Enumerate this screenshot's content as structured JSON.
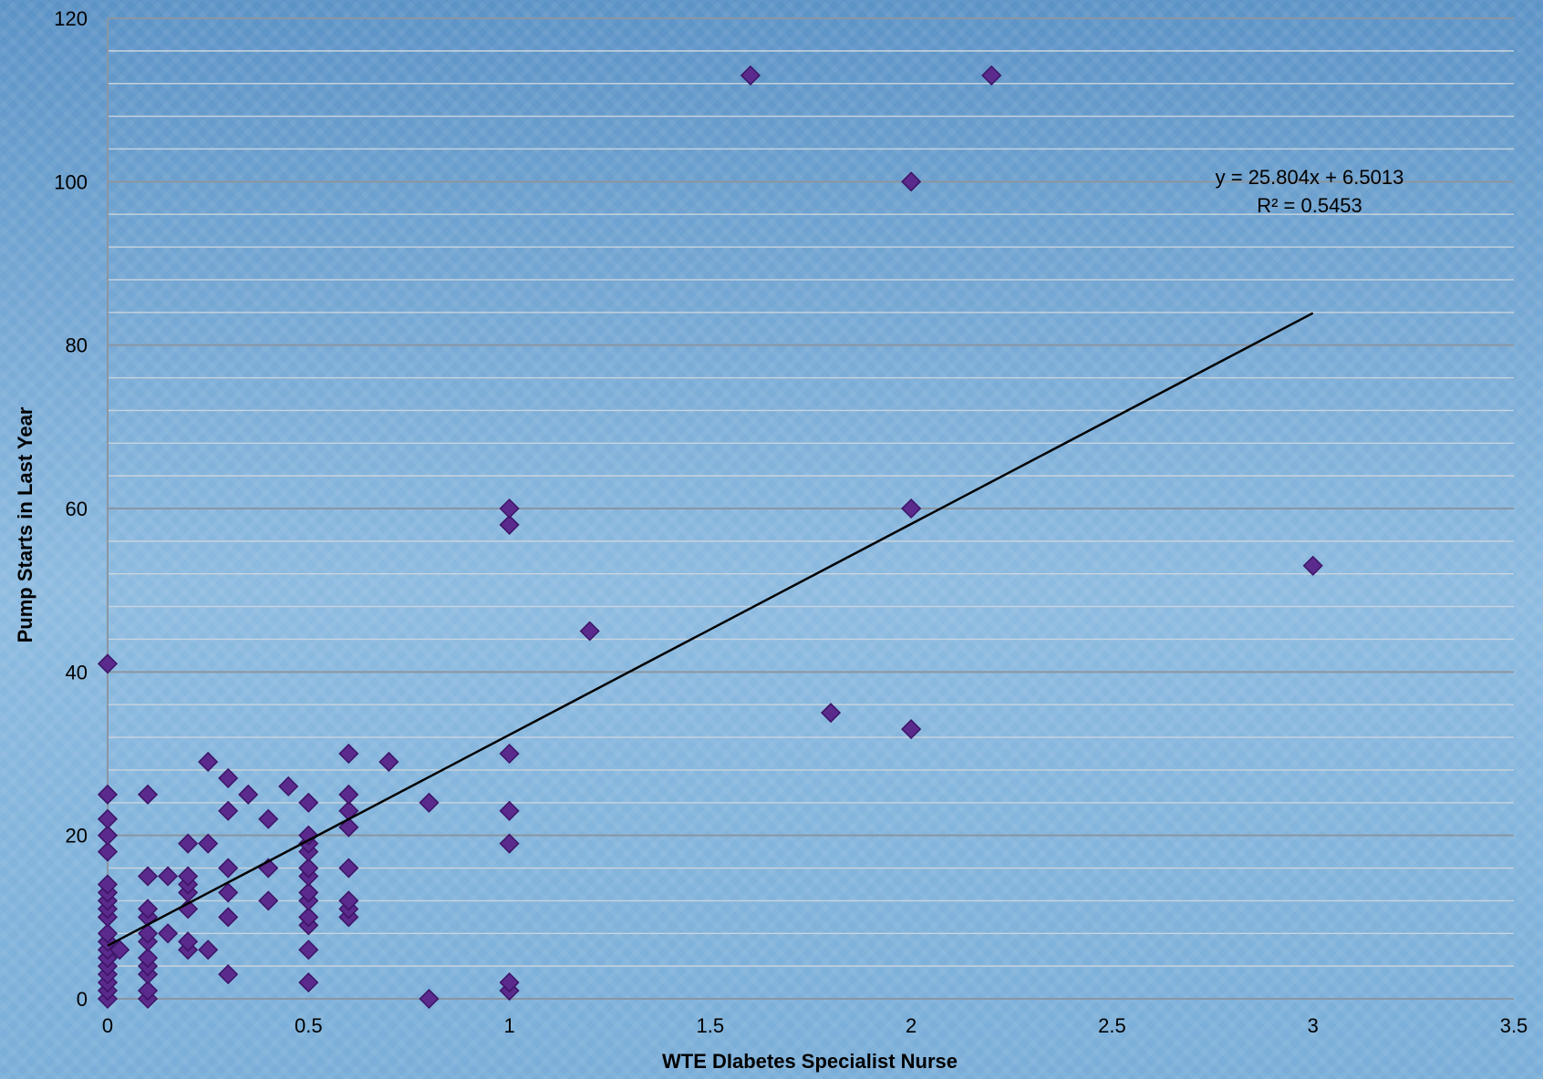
{
  "chart_data": {
    "type": "scatter",
    "title": "",
    "xlabel": "WTE DIabetes Specialist Nurse",
    "ylabel": "Pump Starts in Last Year",
    "xlim": [
      0,
      3.5
    ],
    "ylim": [
      0,
      120
    ],
    "x_ticks": [
      "0",
      "0.5",
      "1",
      "1.5",
      "2",
      "2.5",
      "3",
      "3.5"
    ],
    "y_ticks": [
      "0",
      "20",
      "40",
      "60",
      "80",
      "100",
      "120"
    ],
    "y_major_step": 20,
    "y_minor_step": 4,
    "grid": true,
    "legend": "none",
    "colors": {
      "point": "#5a2a8c",
      "point_edge": "#3b1466",
      "trendline": "#000000",
      "grid_major": "#8a96a3",
      "grid_minor": "#c9d4de"
    },
    "trendline": {
      "slope": 25.804,
      "intercept": 6.5013,
      "x_range": [
        0,
        3
      ],
      "equation_label": "y = 25.804x + 6.5013",
      "r2_label": "R² = 0.5453"
    },
    "points": [
      [
        0,
        0
      ],
      [
        0,
        1
      ],
      [
        0,
        2
      ],
      [
        0,
        3
      ],
      [
        0,
        4
      ],
      [
        0,
        5
      ],
      [
        0,
        6
      ],
      [
        0,
        7
      ],
      [
        0,
        8
      ],
      [
        0,
        10
      ],
      [
        0,
        11
      ],
      [
        0,
        12
      ],
      [
        0,
        13
      ],
      [
        0,
        14
      ],
      [
        0,
        18
      ],
      [
        0,
        20
      ],
      [
        0,
        22
      ],
      [
        0,
        25
      ],
      [
        0,
        41
      ],
      [
        0.03,
        6
      ],
      [
        0.1,
        0
      ],
      [
        0.1,
        1
      ],
      [
        0.1,
        3
      ],
      [
        0.1,
        4
      ],
      [
        0.1,
        5
      ],
      [
        0.1,
        7
      ],
      [
        0.1,
        8
      ],
      [
        0.1,
        10
      ],
      [
        0.1,
        11
      ],
      [
        0.1,
        15
      ],
      [
        0.1,
        25
      ],
      [
        0.15,
        8
      ],
      [
        0.15,
        15
      ],
      [
        0.2,
        6
      ],
      [
        0.2,
        7
      ],
      [
        0.2,
        11
      ],
      [
        0.2,
        13
      ],
      [
        0.2,
        14
      ],
      [
        0.2,
        15
      ],
      [
        0.2,
        19
      ],
      [
        0.25,
        6
      ],
      [
        0.25,
        19
      ],
      [
        0.25,
        29
      ],
      [
        0.3,
        3
      ],
      [
        0.3,
        10
      ],
      [
        0.3,
        13
      ],
      [
        0.3,
        16
      ],
      [
        0.3,
        23
      ],
      [
        0.3,
        27
      ],
      [
        0.35,
        25
      ],
      [
        0.4,
        12
      ],
      [
        0.4,
        16
      ],
      [
        0.4,
        22
      ],
      [
        0.45,
        26
      ],
      [
        0.5,
        2
      ],
      [
        0.5,
        6
      ],
      [
        0.5,
        9
      ],
      [
        0.5,
        10
      ],
      [
        0.5,
        12
      ],
      [
        0.5,
        13
      ],
      [
        0.5,
        15
      ],
      [
        0.5,
        16
      ],
      [
        0.5,
        18
      ],
      [
        0.5,
        19
      ],
      [
        0.5,
        20
      ],
      [
        0.5,
        24
      ],
      [
        0.6,
        10
      ],
      [
        0.6,
        11
      ],
      [
        0.6,
        12
      ],
      [
        0.6,
        16
      ],
      [
        0.6,
        21
      ],
      [
        0.6,
        23
      ],
      [
        0.6,
        25
      ],
      [
        0.6,
        30
      ],
      [
        0.7,
        29
      ],
      [
        0.8,
        0
      ],
      [
        0.8,
        24
      ],
      [
        1,
        1
      ],
      [
        1,
        2
      ],
      [
        1,
        19
      ],
      [
        1,
        23
      ],
      [
        1,
        30
      ],
      [
        1,
        58
      ],
      [
        1,
        60
      ],
      [
        1.2,
        45
      ],
      [
        1.6,
        113
      ],
      [
        1.8,
        35
      ],
      [
        2,
        33
      ],
      [
        2,
        60
      ],
      [
        2,
        100
      ],
      [
        2.2,
        113
      ],
      [
        3,
        53
      ]
    ]
  }
}
